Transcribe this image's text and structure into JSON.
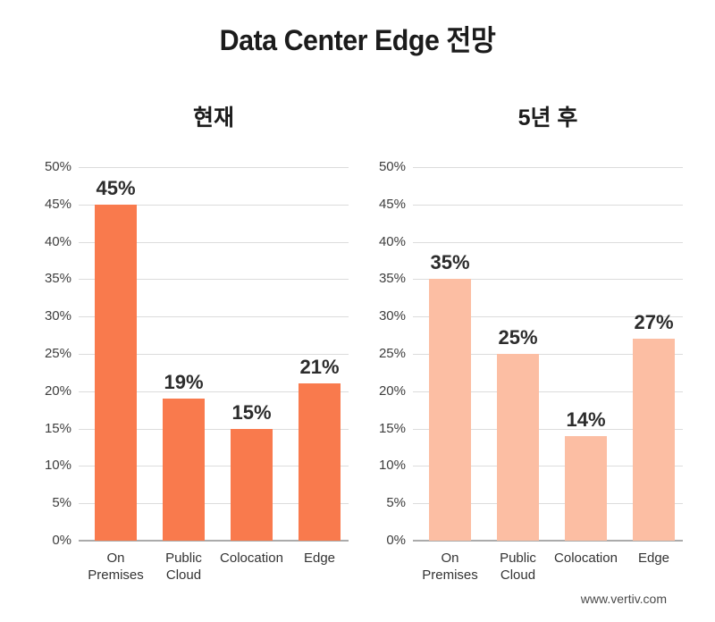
{
  "page": {
    "title": "Data Center Edge 전망",
    "source": "www.vertiv.com"
  },
  "colors": {
    "bar_current": "#F97A4D",
    "bar_future": "#FCBEA3",
    "gridline": "#DCDCDC",
    "axis_baseline": "#ABABAB",
    "text": "#1B1B1B"
  },
  "chart_data": [
    {
      "type": "bar",
      "title": "현재",
      "categories": [
        "On Premises",
        "Public Cloud",
        "Colocation",
        "Edge"
      ],
      "values": [
        45,
        19,
        15,
        21
      ],
      "value_labels": [
        "45%",
        "19%",
        "15%",
        "21%"
      ],
      "bar_color": "#F97A4D",
      "xlabel": "",
      "ylabel": "",
      "ylim": [
        0,
        50
      ],
      "ytick_step": 5,
      "y_suffix": "%",
      "grid": "horizontal",
      "legend": "none"
    },
    {
      "type": "bar",
      "title": "5년 후",
      "categories": [
        "On Premises",
        "Public Cloud",
        "Colocation",
        "Edge"
      ],
      "values": [
        35,
        25,
        14,
        27
      ],
      "value_labels": [
        "35%",
        "25%",
        "14%",
        "27%"
      ],
      "bar_color": "#FCBEA3",
      "xlabel": "",
      "ylabel": "",
      "ylim": [
        0,
        50
      ],
      "ytick_step": 5,
      "y_suffix": "%",
      "grid": "horizontal",
      "legend": "none"
    }
  ]
}
